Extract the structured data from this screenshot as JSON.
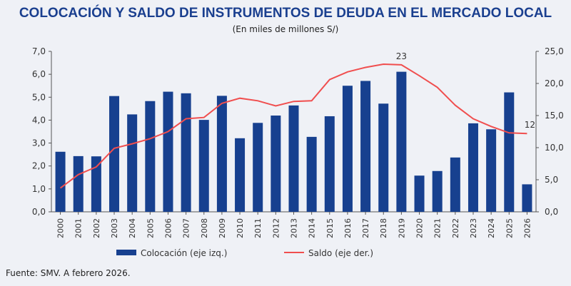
{
  "chart_data": {
    "type": "bar",
    "title": "COLOCACIÓN Y SALDO DE INSTRUMENTOS DE DEUDA EN EL MERCADO LOCAL",
    "subtitle": "(En miles de millones S/)",
    "categories": [
      "2000",
      "2001",
      "2002",
      "2003",
      "2004",
      "2005",
      "2006",
      "2007",
      "2008",
      "2009",
      "2010",
      "2011",
      "2012",
      "2013",
      "2014",
      "2015",
      "2016",
      "2017",
      "2018",
      "2019",
      "2020",
      "2021",
      "2022",
      "2023",
      "2024",
      "2025",
      "2026"
    ],
    "series": [
      {
        "name": "Colocación (eje izq.)",
        "type": "bar",
        "axis": "left",
        "color": "#17408f",
        "values": [
          2.62,
          2.43,
          2.42,
          5.05,
          4.25,
          4.83,
          5.24,
          5.17,
          4.01,
          5.06,
          3.21,
          3.88,
          4.2,
          4.64,
          3.27,
          4.17,
          5.5,
          5.71,
          4.72,
          6.11,
          1.58,
          1.78,
          2.37,
          3.86,
          3.6,
          5.21,
          1.2
        ]
      },
      {
        "name": "Saldo (eje der.)",
        "type": "line",
        "axis": "right",
        "color": "#f04e4e",
        "values": [
          3.7,
          5.8,
          7.0,
          9.9,
          10.6,
          11.4,
          12.5,
          14.5,
          14.7,
          16.9,
          17.7,
          17.3,
          16.5,
          17.2,
          17.3,
          20.6,
          21.8,
          22.5,
          23.0,
          22.9,
          21.2,
          19.4,
          16.6,
          14.5,
          13.3,
          12.3,
          12.2
        ]
      }
    ],
    "annotations": [
      {
        "category": "2019",
        "series": "Saldo (eje der.)",
        "label": "23"
      },
      {
        "category": "2026",
        "series": "Saldo (eje der.)",
        "label": "12"
      }
    ],
    "ylim_left": [
      0,
      7
    ],
    "yticks_left": [
      "0,0",
      "1,0",
      "2,0",
      "3,0",
      "4,0",
      "5,0",
      "6,0",
      "7,0"
    ],
    "ylim_right": [
      0,
      25
    ],
    "yticks_right": [
      "0,0",
      "5,0",
      "10,0",
      "15,0",
      "20,0",
      "25,0"
    ],
    "legend_position": "bottom",
    "grid": false
  },
  "footer": "Fuente: SMV. A febrero 2026."
}
